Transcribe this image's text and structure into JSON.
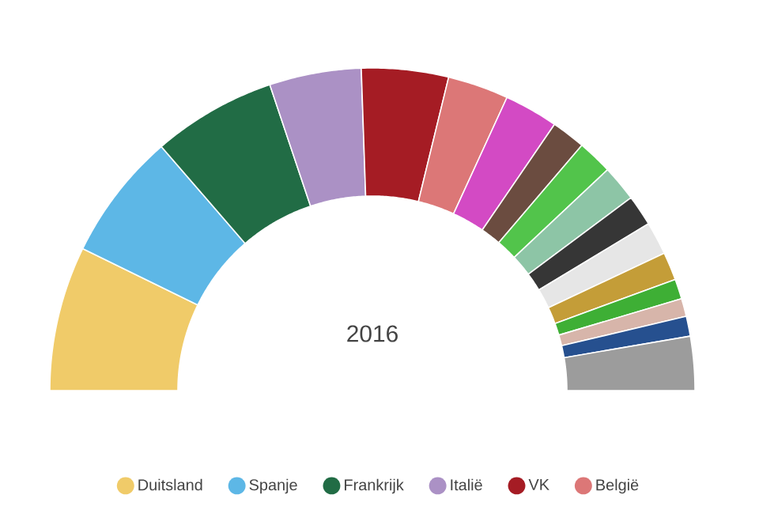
{
  "chart_data": {
    "type": "donut",
    "title": "2016",
    "categories": [
      "Duitsland",
      "Spanje",
      "Frankrijk",
      "Italië",
      "VK",
      "België",
      null,
      null,
      null,
      null,
      null,
      null,
      null,
      null,
      null,
      null,
      null
    ],
    "values": [
      14.5,
      12.8,
      12.4,
      9.2,
      8.7,
      6.1,
      5.4,
      3.4,
      3.5,
      3.6,
      3.1,
      3.3,
      2.8,
      2.0,
      1.8,
      2.0,
      5.4
    ],
    "colors": [
      "#f0cb69",
      "#5db7e6",
      "#216c45",
      "#ab91c5",
      "#a51c24",
      "#dc7777",
      "#d34ac4",
      "#6b4c40",
      "#52c44b",
      "#8dc5a6",
      "#363636",
      "#e6e6e6",
      "#c49d38",
      "#3eaf35",
      "#d7b5aa",
      "#26508f",
      "#9c9c9c"
    ],
    "legend": "bottom"
  }
}
